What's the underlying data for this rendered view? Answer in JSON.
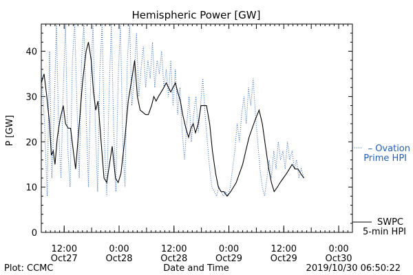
{
  "chart_data": {
    "type": "line",
    "title": "Hemispheric Power [GW]",
    "xlabel": "Date and Time",
    "ylabel": "P [GW]",
    "x_unit": "hours",
    "xlim": [
      0,
      68
    ],
    "ylim": [
      0,
      46
    ],
    "y_ticks": [
      0,
      10,
      20,
      30,
      40
    ],
    "x_ticks": [
      {
        "at": 5,
        "time": "12:00",
        "date": "Oct27"
      },
      {
        "at": 17,
        "time": "0:00",
        "date": "Oct28"
      },
      {
        "at": 29,
        "time": "12:00",
        "date": "Oct28"
      },
      {
        "at": 41,
        "time": "0:00",
        "date": "Oct29"
      },
      {
        "at": 53,
        "time": "12:00",
        "date": "Oct29"
      },
      {
        "at": 65,
        "time": "0:00",
        "date": "Oct30"
      }
    ],
    "series": [
      {
        "name": "SWPC 5-min HPI",
        "style": "solid",
        "color": "#000000",
        "points": [
          [
            0,
            33
          ],
          [
            0.6,
            35
          ],
          [
            1.2,
            30
          ],
          [
            1.8,
            24
          ],
          [
            2.2,
            17
          ],
          [
            2.6,
            18
          ],
          [
            3.0,
            15
          ],
          [
            3.5,
            21
          ],
          [
            4.1,
            25
          ],
          [
            4.8,
            28
          ],
          [
            5.3,
            24
          ],
          [
            5.9,
            23
          ],
          [
            6.4,
            23
          ],
          [
            7.0,
            18
          ],
          [
            7.5,
            14
          ],
          [
            8.3,
            24
          ],
          [
            9.0,
            33
          ],
          [
            9.8,
            40
          ],
          [
            10.3,
            42
          ],
          [
            10.9,
            38
          ],
          [
            11.4,
            31
          ],
          [
            11.9,
            27
          ],
          [
            12.4,
            29
          ],
          [
            13.0,
            21
          ],
          [
            13.7,
            12
          ],
          [
            14.3,
            11
          ],
          [
            14.9,
            15
          ],
          [
            15.5,
            19
          ],
          [
            16.2,
            12
          ],
          [
            16.8,
            11
          ],
          [
            17.4,
            13
          ],
          [
            18.3,
            21
          ],
          [
            19.0,
            29
          ],
          [
            19.8,
            34
          ],
          [
            20.4,
            38
          ],
          [
            21.0,
            30
          ],
          [
            21.6,
            27
          ],
          [
            22.8,
            26
          ],
          [
            23.4,
            26
          ],
          [
            24.1,
            28
          ],
          [
            24.6,
            30
          ],
          [
            25.1,
            29
          ],
          [
            25.6,
            30
          ],
          [
            26.2,
            31
          ],
          [
            26.8,
            32
          ],
          [
            27.3,
            33
          ],
          [
            27.8,
            32
          ],
          [
            28.3,
            31
          ],
          [
            28.8,
            32
          ],
          [
            29.3,
            33
          ],
          [
            29.8,
            31
          ],
          [
            30.4,
            29
          ],
          [
            30.9,
            26
          ],
          [
            31.6,
            23
          ],
          [
            32.2,
            21
          ],
          [
            32.7,
            23
          ],
          [
            33.2,
            24
          ],
          [
            33.7,
            22
          ],
          [
            34.3,
            24
          ],
          [
            34.9,
            28
          ],
          [
            36.1,
            28
          ],
          [
            36.8,
            24
          ],
          [
            37.4,
            18
          ],
          [
            38.1,
            13
          ],
          [
            38.7,
            10
          ],
          [
            39.3,
            9
          ],
          [
            39.9,
            9
          ],
          [
            40.6,
            8
          ],
          [
            41.4,
            9
          ],
          [
            42.0,
            10
          ],
          [
            42.6,
            11
          ],
          [
            43.3,
            13
          ],
          [
            44.0,
            15
          ],
          [
            44.7,
            18
          ],
          [
            45.4,
            21
          ],
          [
            46.1,
            23
          ],
          [
            46.8,
            25
          ],
          [
            47.6,
            27
          ],
          [
            48.3,
            24
          ],
          [
            49.0,
            19
          ],
          [
            49.7,
            14
          ],
          [
            50.3,
            11
          ],
          [
            50.9,
            9
          ],
          [
            51.6,
            10
          ],
          [
            52.2,
            11
          ],
          [
            52.9,
            12
          ],
          [
            53.6,
            13
          ],
          [
            54.2,
            14
          ],
          [
            54.8,
            15
          ],
          [
            55.5,
            14
          ],
          [
            56.1,
            14
          ],
          [
            56.7,
            13
          ],
          [
            57.4,
            12
          ]
        ]
      },
      {
        "name": "Ovation Prime HPI",
        "style": "dotted",
        "color": "#1f5fbf",
        "points": [
          [
            0,
            36
          ],
          [
            0.7,
            24
          ],
          [
            1.3,
            8
          ],
          [
            1.8,
            40
          ],
          [
            2.3,
            12
          ],
          [
            2.8,
            26
          ],
          [
            3.3,
            46
          ],
          [
            3.8,
            22
          ],
          [
            4.3,
            12
          ],
          [
            4.8,
            32
          ],
          [
            5.3,
            46
          ],
          [
            5.8,
            18
          ],
          [
            6.3,
            10
          ],
          [
            6.8,
            38
          ],
          [
            7.3,
            46
          ],
          [
            7.8,
            28
          ],
          [
            8.3,
            12
          ],
          [
            8.8,
            38
          ],
          [
            9.3,
            46
          ],
          [
            9.8,
            26
          ],
          [
            10.3,
            10
          ],
          [
            10.8,
            34
          ],
          [
            11.3,
            46
          ],
          [
            11.8,
            24
          ],
          [
            12.3,
            9
          ],
          [
            12.8,
            36
          ],
          [
            13.3,
            46
          ],
          [
            13.8,
            20
          ],
          [
            14.3,
            8
          ],
          [
            14.8,
            30
          ],
          [
            15.3,
            46
          ],
          [
            15.8,
            24
          ],
          [
            16.3,
            9
          ],
          [
            16.8,
            34
          ],
          [
            17.3,
            46
          ],
          [
            17.8,
            20
          ],
          [
            18.3,
            10
          ],
          [
            18.8,
            38
          ],
          [
            19.3,
            46
          ],
          [
            19.8,
            28
          ],
          [
            20.3,
            34
          ],
          [
            20.8,
            44
          ],
          [
            21.3,
            30
          ],
          [
            21.8,
            36
          ],
          [
            22.3,
            41
          ],
          [
            22.8,
            32
          ],
          [
            23.3,
            38
          ],
          [
            23.8,
            34
          ],
          [
            24.3,
            42
          ],
          [
            24.8,
            32
          ],
          [
            25.3,
            38
          ],
          [
            25.8,
            35
          ],
          [
            26.3,
            40
          ],
          [
            26.8,
            32
          ],
          [
            27.3,
            36
          ],
          [
            27.8,
            30
          ],
          [
            28.3,
            38
          ],
          [
            28.8,
            28
          ],
          [
            29.3,
            36
          ],
          [
            29.8,
            26
          ],
          [
            30.3,
            32
          ],
          [
            30.8,
            22
          ],
          [
            31.3,
            16
          ],
          [
            31.8,
            24
          ],
          [
            32.3,
            30
          ],
          [
            32.8,
            20
          ],
          [
            33.3,
            26
          ],
          [
            33.8,
            30
          ],
          [
            34.3,
            22
          ],
          [
            34.8,
            28
          ],
          [
            35.3,
            34
          ],
          [
            35.8,
            26
          ],
          [
            36.3,
            20
          ],
          [
            36.8,
            14
          ],
          [
            37.3,
            10
          ],
          [
            37.8,
            9
          ],
          [
            38.3,
            8
          ],
          [
            38.8,
            10
          ],
          [
            39.3,
            9
          ],
          [
            39.8,
            8
          ],
          [
            40.3,
            9
          ],
          [
            40.8,
            8
          ],
          [
            41.3,
            10
          ],
          [
            41.8,
            14
          ],
          [
            42.3,
            18
          ],
          [
            42.8,
            24
          ],
          [
            43.3,
            20
          ],
          [
            43.8,
            26
          ],
          [
            44.3,
            30
          ],
          [
            44.8,
            24
          ],
          [
            45.3,
            32
          ],
          [
            45.8,
            28
          ],
          [
            46.3,
            34
          ],
          [
            46.8,
            26
          ],
          [
            47.3,
            20
          ],
          [
            47.8,
            14
          ],
          [
            48.3,
            10
          ],
          [
            48.8,
            8
          ],
          [
            49.3,
            12
          ],
          [
            49.8,
            16
          ],
          [
            50.3,
            12
          ],
          [
            50.8,
            18
          ],
          [
            51.3,
            14
          ],
          [
            51.8,
            20
          ],
          [
            52.3,
            16
          ],
          [
            52.8,
            18
          ],
          [
            53.3,
            14
          ],
          [
            53.8,
            20
          ],
          [
            54.3,
            16
          ],
          [
            54.8,
            18
          ],
          [
            55.3,
            14
          ],
          [
            55.8,
            16
          ],
          [
            56.3,
            12
          ],
          [
            56.8,
            14
          ],
          [
            57.4,
            12
          ]
        ]
      }
    ],
    "legend": [
      {
        "style": "dotted",
        "color": "#1f5fbf",
        "line1": "Ovation",
        "line2": "Prime HPI"
      },
      {
        "style": "solid",
        "color": "#000000",
        "line1": "SWPC",
        "line2": "5-min HPI"
      }
    ],
    "footer": {
      "left": "Plot: CCMC",
      "right": "2019/10/30 06:50:22"
    }
  }
}
